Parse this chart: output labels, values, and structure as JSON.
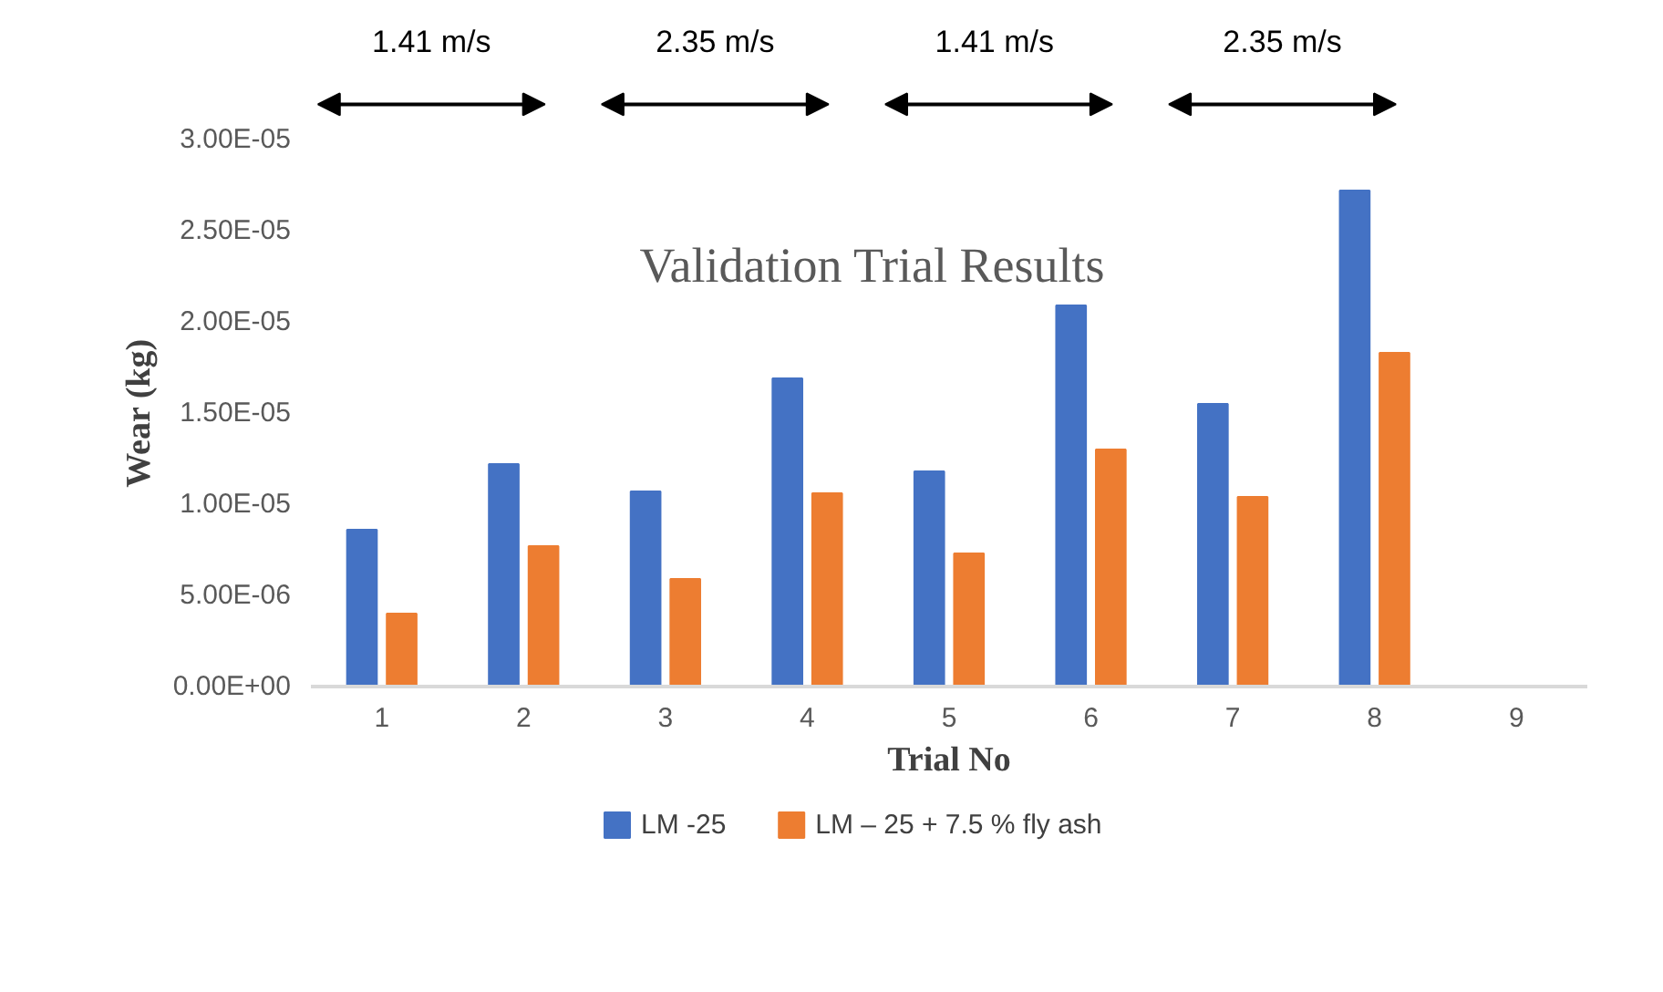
{
  "chart_data": {
    "type": "bar",
    "title": "Validation Trial Results",
    "xlabel": "Trial No",
    "ylabel": "Wear (kg)",
    "categories": [
      "1",
      "2",
      "3",
      "4",
      "5",
      "6",
      "7",
      "8",
      "9"
    ],
    "series": [
      {
        "name": "LM -25",
        "color": "#4472c4",
        "values": [
          8.6e-06,
          1.22e-05,
          1.07e-05,
          1.69e-05,
          1.18e-05,
          2.09e-05,
          1.55e-05,
          2.72e-05,
          null
        ]
      },
      {
        "name": "LM – 25 + 7.5 %  fly ash",
        "color": "#ed7d31",
        "values": [
          4e-06,
          7.7e-06,
          5.9e-06,
          1.06e-05,
          7.3e-06,
          1.3e-05,
          1.04e-05,
          1.83e-05,
          null
        ]
      }
    ],
    "ylim": [
      0,
      3e-05
    ],
    "yticks": [
      {
        "value": 0,
        "label": "0.00E+00"
      },
      {
        "value": 5e-06,
        "label": "5.00E-06"
      },
      {
        "value": 1e-05,
        "label": "1.00E-05"
      },
      {
        "value": 1.5e-05,
        "label": "1.50E-05"
      },
      {
        "value": 2e-05,
        "label": "2.00E-05"
      },
      {
        "value": 2.5e-05,
        "label": "2.50E-05"
      },
      {
        "value": 3e-05,
        "label": "3.00E-05"
      }
    ],
    "annotations": [
      "1.41 m/s",
      "2.35 m/s",
      "1.41  m/s",
      "2.35 m/s"
    ],
    "legend": "bottom"
  }
}
